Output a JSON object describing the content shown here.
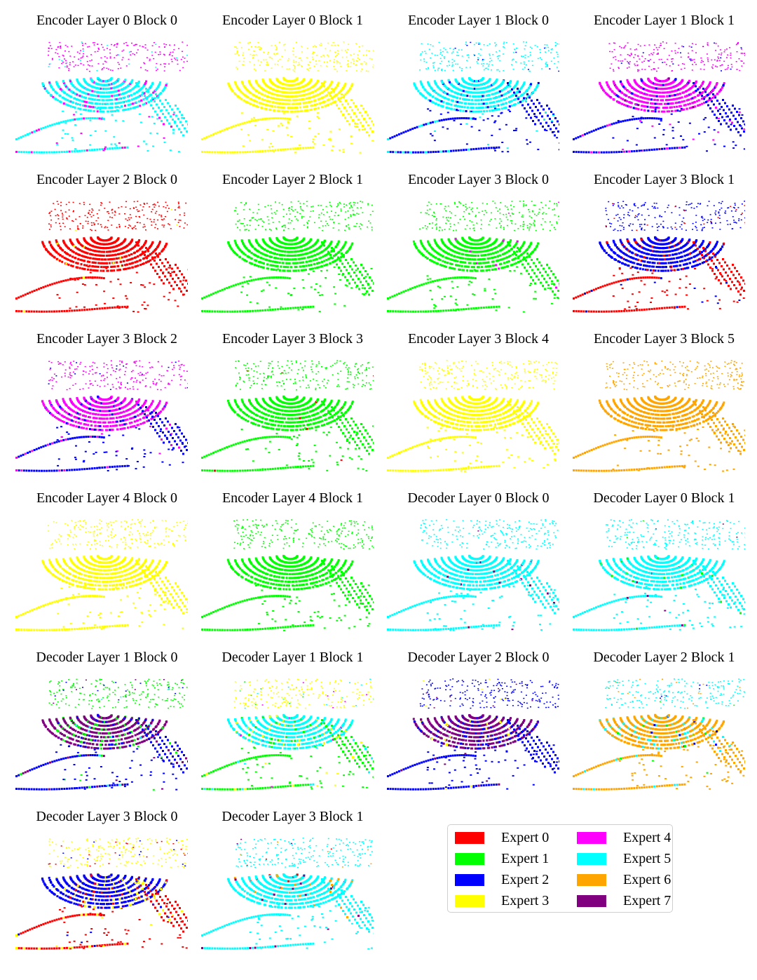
{
  "figure": {
    "panels": [
      {
        "title": "Encoder Layer 0 Block 0",
        "map": {
          "bg": 4,
          "ring": 5,
          "outer": 5,
          "parts": [
            [
              4,
              0.55
            ],
            [
              5,
              0.45
            ]
          ]
        }
      },
      {
        "title": "Encoder Layer 0 Block 1",
        "map": {
          "bg": 3,
          "ring": 3,
          "outer": 3,
          "parts": [
            [
              3,
              1.0
            ]
          ]
        }
      },
      {
        "title": "Encoder Layer 1 Block 0",
        "map": {
          "bg": 5,
          "ring": 5,
          "outer": 2,
          "parts": [
            [
              5,
              0.7
            ],
            [
              2,
              0.3
            ]
          ]
        }
      },
      {
        "title": "Encoder Layer 1 Block 1",
        "map": {
          "bg": 4,
          "ring": 4,
          "outer": 2,
          "parts": [
            [
              4,
              0.6
            ],
            [
              2,
              0.35
            ],
            [
              7,
              0.05
            ]
          ]
        }
      },
      {
        "title": "Encoder Layer 2 Block 0",
        "map": {
          "bg": 0,
          "ring": 0,
          "outer": 0,
          "parts": [
            [
              0,
              0.92
            ],
            [
              3,
              0.08
            ]
          ]
        }
      },
      {
        "title": "Encoder Layer 2 Block 1",
        "map": {
          "bg": 1,
          "ring": 1,
          "outer": 1,
          "parts": [
            [
              1,
              1.0
            ]
          ]
        }
      },
      {
        "title": "Encoder Layer 3 Block 0",
        "map": {
          "bg": 1,
          "ring": 1,
          "outer": 1,
          "parts": [
            [
              1,
              0.95
            ],
            [
              4,
              0.05
            ]
          ]
        }
      },
      {
        "title": "Encoder Layer 3 Block 1",
        "map": {
          "bg": 2,
          "ring": 2,
          "outer": 0,
          "parts": [
            [
              2,
              0.55
            ],
            [
              0,
              0.45
            ]
          ]
        }
      },
      {
        "title": "Encoder Layer 3 Block 2",
        "map": {
          "bg": 4,
          "ring": 4,
          "outer": 2,
          "parts": [
            [
              4,
              0.6
            ],
            [
              2,
              0.4
            ]
          ]
        }
      },
      {
        "title": "Encoder Layer 3 Block 3",
        "map": {
          "bg": 1,
          "ring": 1,
          "outer": 1,
          "parts": [
            [
              1,
              0.97
            ],
            [
              0,
              0.03
            ]
          ]
        }
      },
      {
        "title": "Encoder Layer 3 Block 4",
        "map": {
          "bg": 3,
          "ring": 3,
          "outer": 3,
          "parts": [
            [
              3,
              1.0
            ]
          ]
        }
      },
      {
        "title": "Encoder Layer 3 Block 5",
        "map": {
          "bg": 6,
          "ring": 6,
          "outer": 6,
          "parts": [
            [
              6,
              1.0
            ]
          ]
        }
      },
      {
        "title": "Encoder Layer 4 Block 0",
        "map": {
          "bg": 3,
          "ring": 3,
          "outer": 3,
          "parts": [
            [
              3,
              1.0
            ]
          ]
        }
      },
      {
        "title": "Encoder Layer 4 Block 1",
        "map": {
          "bg": 1,
          "ring": 1,
          "outer": 1,
          "parts": [
            [
              1,
              1.0
            ]
          ]
        }
      },
      {
        "title": "Decoder Layer 0 Block 0",
        "map": {
          "bg": 5,
          "ring": 5,
          "outer": 5,
          "parts": [
            [
              5,
              0.94
            ],
            [
              7,
              0.06
            ]
          ]
        }
      },
      {
        "title": "Decoder Layer 0 Block 1",
        "map": {
          "bg": 5,
          "ring": 5,
          "outer": 5,
          "parts": [
            [
              5,
              0.85
            ],
            [
              7,
              0.08
            ],
            [
              1,
              0.07
            ]
          ]
        }
      },
      {
        "title": "Decoder Layer 1 Block 0",
        "map": {
          "bg": 1,
          "ring": 7,
          "outer": 2,
          "parts": [
            [
              1,
              0.45
            ],
            [
              2,
              0.25
            ],
            [
              7,
              0.2
            ],
            [
              5,
              0.1
            ]
          ]
        }
      },
      {
        "title": "Decoder Layer 1 Block 1",
        "map": {
          "bg": 3,
          "ring": 5,
          "outer": 1,
          "parts": [
            [
              3,
              0.35
            ],
            [
              5,
              0.35
            ],
            [
              1,
              0.25
            ],
            [
              4,
              0.05
            ]
          ]
        }
      },
      {
        "title": "Decoder Layer 2 Block 0",
        "map": {
          "bg": 2,
          "ring": 7,
          "outer": 2,
          "parts": [
            [
              2,
              0.7
            ],
            [
              7,
              0.18
            ],
            [
              3,
              0.12
            ]
          ]
        }
      },
      {
        "title": "Decoder Layer 2 Block 1",
        "map": {
          "bg": 5,
          "ring": 6,
          "outer": 6,
          "parts": [
            [
              5,
              0.4
            ],
            [
              6,
              0.4
            ],
            [
              2,
              0.1
            ],
            [
              1,
              0.1
            ]
          ]
        }
      },
      {
        "title": "Decoder Layer 3 Block 0",
        "map": {
          "bg": 3,
          "ring": 2,
          "outer": 0,
          "parts": [
            [
              3,
              0.4
            ],
            [
              0,
              0.35
            ],
            [
              2,
              0.25
            ]
          ]
        }
      },
      {
        "title": "Decoder Layer 3 Block 1",
        "map": {
          "bg": 5,
          "ring": 5,
          "outer": 5,
          "parts": [
            [
              5,
              0.8
            ],
            [
              6,
              0.1
            ],
            [
              7,
              0.06
            ],
            [
              0,
              0.04
            ]
          ]
        }
      }
    ],
    "legend": [
      {
        "label": "Expert 0",
        "color": "#ff0000"
      },
      {
        "label": "Expert 1",
        "color": "#00ff00"
      },
      {
        "label": "Expert 2",
        "color": "#0000ff"
      },
      {
        "label": "Expert 3",
        "color": "#ffff00"
      },
      {
        "label": "Expert 4",
        "color": "#ff00ff"
      },
      {
        "label": "Expert 5",
        "color": "#00ffff"
      },
      {
        "label": "Expert 6",
        "color": "#ffa500"
      },
      {
        "label": "Expert 7",
        "color": "#800080"
      }
    ]
  }
}
